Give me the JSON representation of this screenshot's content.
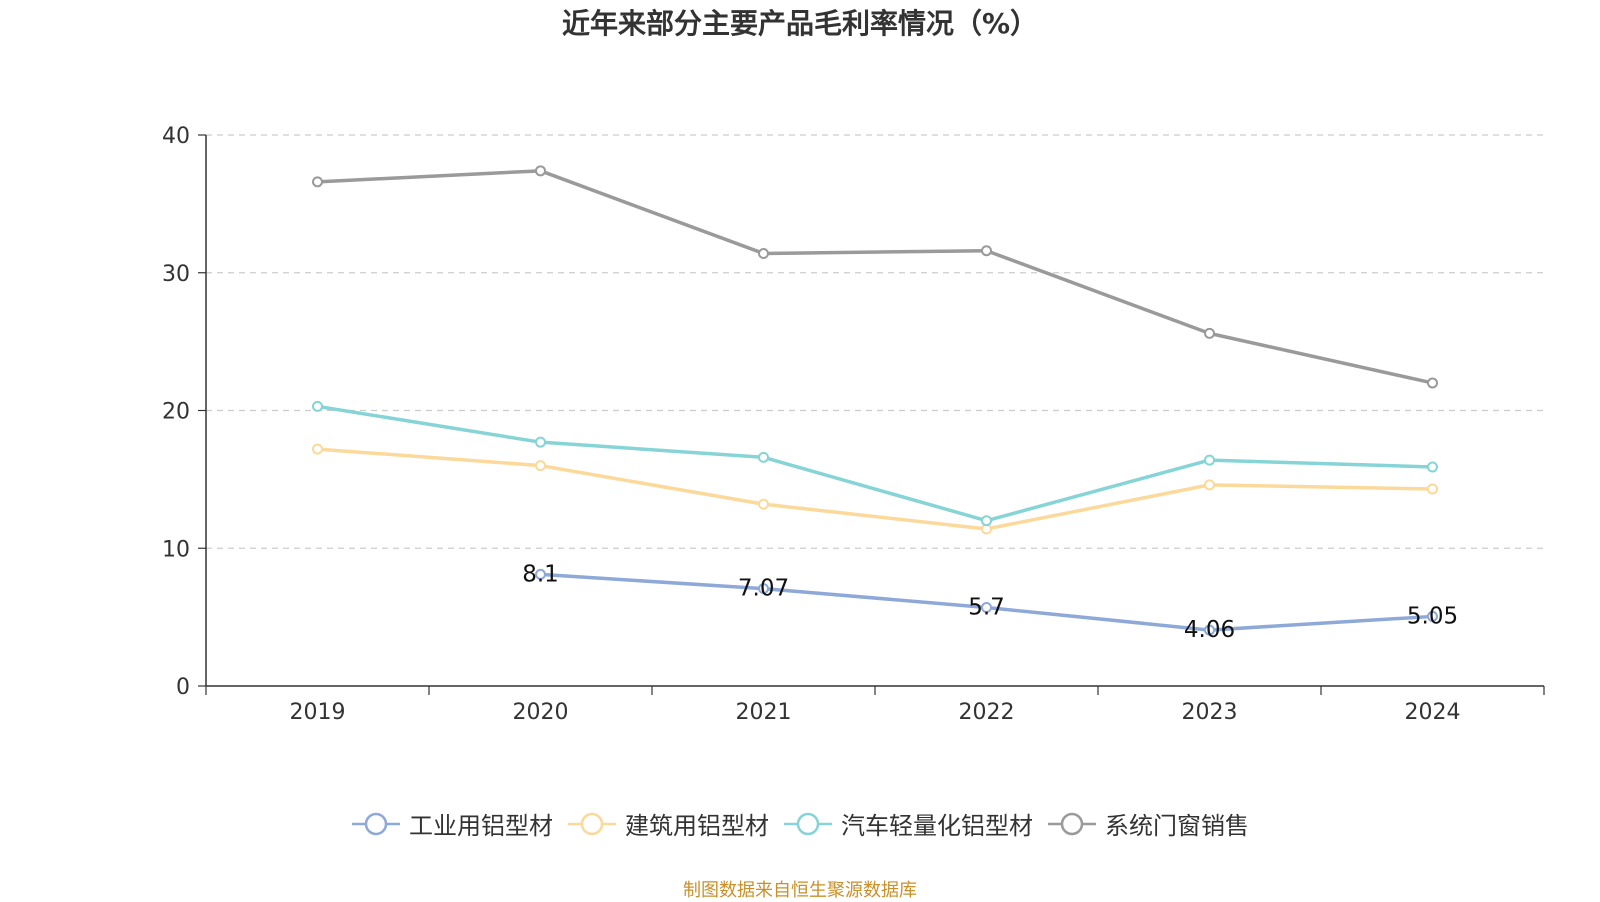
{
  "chart_data": {
    "type": "line",
    "title": "近年来部分主要产品毛利率情况（%）",
    "xlabel": "",
    "ylabel": "",
    "categories": [
      "2019",
      "2020",
      "2021",
      "2022",
      "2023",
      "2024"
    ],
    "ylim": [
      0,
      40
    ],
    "yticks": [
      "0",
      "10",
      "20",
      "30",
      "40"
    ],
    "grid": true,
    "legend_position": "bottom",
    "series": [
      {
        "name": "工业用铝型材",
        "color": "#8EA9D8",
        "values": [
          null,
          8.1,
          7.07,
          5.7,
          4.06,
          5.05
        ],
        "labels": [
          "",
          "8.1",
          "7.07",
          "5.7",
          "4.06",
          "5.05"
        ]
      },
      {
        "name": "建筑用铝型材",
        "color": "#FBD99A",
        "values": [
          17.2,
          16.0,
          13.2,
          11.4,
          14.6,
          14.3
        ],
        "labels": []
      },
      {
        "name": "汽车轻量化铝型材",
        "color": "#86D4D6",
        "values": [
          20.3,
          17.7,
          16.6,
          12.0,
          16.4,
          15.9
        ],
        "labels": []
      },
      {
        "name": "系统门窗销售",
        "color": "#9A9A9A",
        "values": [
          36.6,
          37.4,
          31.4,
          31.6,
          25.6,
          22.0
        ],
        "labels": []
      }
    ]
  },
  "source_text": "制图数据来自恒生聚源数据库",
  "source_color": "#C8902A"
}
